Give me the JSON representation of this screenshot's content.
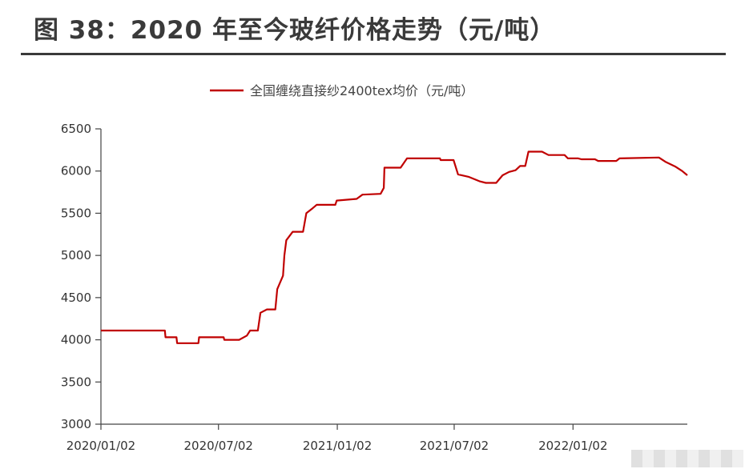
{
  "title": "图 38：2020 年至今玻纤价格走势（元/吨）",
  "chart_data": {
    "type": "line",
    "series": [
      {
        "name": "全国缠绕直接纱2400tex均价（元/吨）",
        "color": "#c00000",
        "points": [
          [
            "2020/01/02",
            4110
          ],
          [
            "2020/04/10",
            4110
          ],
          [
            "2020/04/11",
            4030
          ],
          [
            "2020/04/28",
            4030
          ],
          [
            "2020/04/29",
            3960
          ],
          [
            "2020/06/01",
            3960
          ],
          [
            "2020/06/02",
            4030
          ],
          [
            "2020/07/10",
            4030
          ],
          [
            "2020/07/11",
            4000
          ],
          [
            "2020/08/03",
            4000
          ],
          [
            "2020/08/15",
            4050
          ],
          [
            "2020/08/20",
            4110
          ],
          [
            "2020/09/01",
            4110
          ],
          [
            "2020/09/05",
            4320
          ],
          [
            "2020/09/15",
            4360
          ],
          [
            "2020/09/28",
            4360
          ],
          [
            "2020/10/01",
            4600
          ],
          [
            "2020/10/10",
            4760
          ],
          [
            "2020/10/12",
            5000
          ],
          [
            "2020/10/15",
            5180
          ],
          [
            "2020/10/25",
            5280
          ],
          [
            "2020/11/10",
            5280
          ],
          [
            "2020/11/15",
            5500
          ],
          [
            "2020/11/25",
            5560
          ],
          [
            "2020/12/01",
            5600
          ],
          [
            "2020/12/30",
            5600
          ],
          [
            "2021/01/01",
            5650
          ],
          [
            "2021/02/01",
            5670
          ],
          [
            "2021/02/10",
            5720
          ],
          [
            "2021/03/10",
            5730
          ],
          [
            "2021/03/15",
            5800
          ],
          [
            "2021/03/16",
            6040
          ],
          [
            "2021/04/10",
            6040
          ],
          [
            "2021/04/20",
            6150
          ],
          [
            "2021/06/10",
            6150
          ],
          [
            "2021/06/11",
            6130
          ],
          [
            "2021/07/01",
            6130
          ],
          [
            "2021/07/08",
            5960
          ],
          [
            "2021/07/25",
            5930
          ],
          [
            "2021/08/10",
            5880
          ],
          [
            "2021/08/20",
            5860
          ],
          [
            "2021/09/05",
            5860
          ],
          [
            "2021/09/15",
            5950
          ],
          [
            "2021/09/25",
            5990
          ],
          [
            "2021/10/05",
            6010
          ],
          [
            "2021/10/12",
            6060
          ],
          [
            "2021/10/20",
            6060
          ],
          [
            "2021/10/25",
            6230
          ],
          [
            "2021/11/15",
            6230
          ],
          [
            "2021/11/25",
            6190
          ],
          [
            "2021/12/20",
            6190
          ],
          [
            "2021/12/25",
            6150
          ],
          [
            "2022/01/10",
            6150
          ],
          [
            "2022/01/15",
            6140
          ],
          [
            "2022/02/05",
            6140
          ],
          [
            "2022/02/10",
            6120
          ],
          [
            "2022/03/10",
            6120
          ],
          [
            "2022/03/15",
            6150
          ],
          [
            "2022/05/15",
            6160
          ],
          [
            "2022/05/25",
            6110
          ],
          [
            "2022/06/10",
            6050
          ],
          [
            "2022/06/20",
            6000
          ],
          [
            "2022/06/28",
            5950
          ]
        ]
      }
    ],
    "x_ticks": [
      "2020/01/02",
      "2020/07/02",
      "2021/01/02",
      "2021/07/02",
      "2022/01/02"
    ],
    "xlim": [
      "2020/01/02",
      "2022/06/28"
    ],
    "y_ticks": [
      3000,
      3500,
      4000,
      4500,
      5000,
      5500,
      6000,
      6500
    ],
    "ylim": [
      3000,
      6500
    ],
    "grid": false,
    "legend_position": "top-center"
  }
}
